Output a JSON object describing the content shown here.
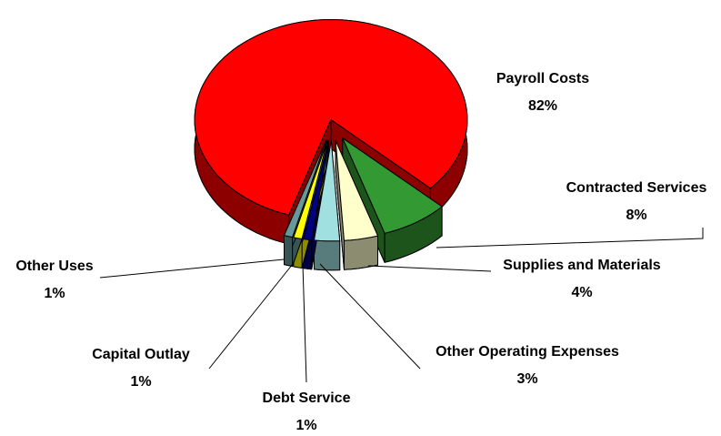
{
  "chart_data": {
    "type": "pie",
    "three_d": true,
    "categories": [
      "Payroll Costs",
      "Contracted Services",
      "Supplies and Materials",
      "Other Operating Expenses",
      "Debt Service",
      "Capital Outlay",
      "Other Uses"
    ],
    "values": [
      82,
      8,
      4,
      3,
      1,
      1,
      1
    ],
    "value_labels": [
      "82%",
      "8%",
      "4%",
      "3%",
      "1%",
      "1%",
      "1%"
    ],
    "colors": [
      "#ff0000",
      "#339933",
      "#ffffcc",
      "#a0e0e0",
      "#000080",
      "#ffff00",
      "#669999"
    ]
  }
}
